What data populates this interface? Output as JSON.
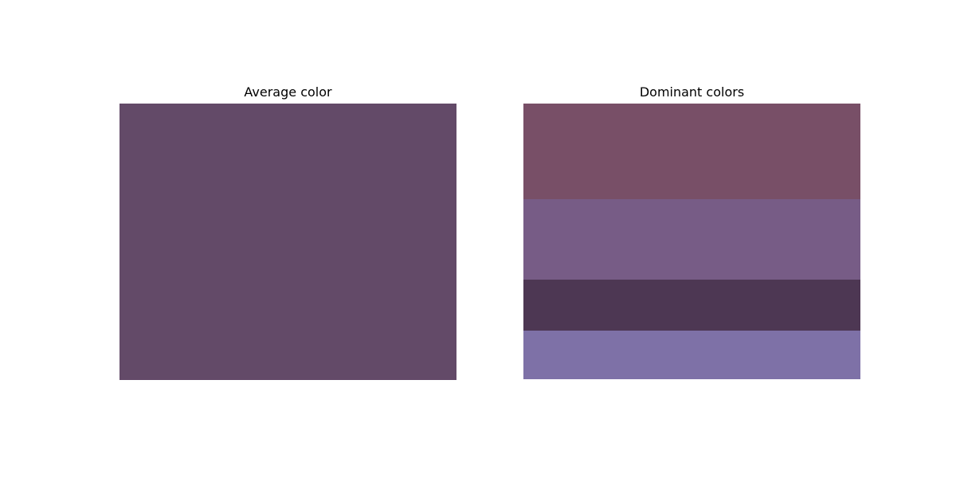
{
  "chart_data": [
    {
      "type": "heatmap",
      "title": "Average color",
      "colors": [
        "#634a68"
      ],
      "proportions": [
        1.0
      ]
    },
    {
      "type": "heatmap",
      "title": "Dominant colors",
      "colors": [
        "#784f67",
        "#775c86",
        "#4d3753",
        "#7e71a7"
      ],
      "proportions": [
        0.347,
        0.292,
        0.185,
        0.176
      ]
    }
  ]
}
